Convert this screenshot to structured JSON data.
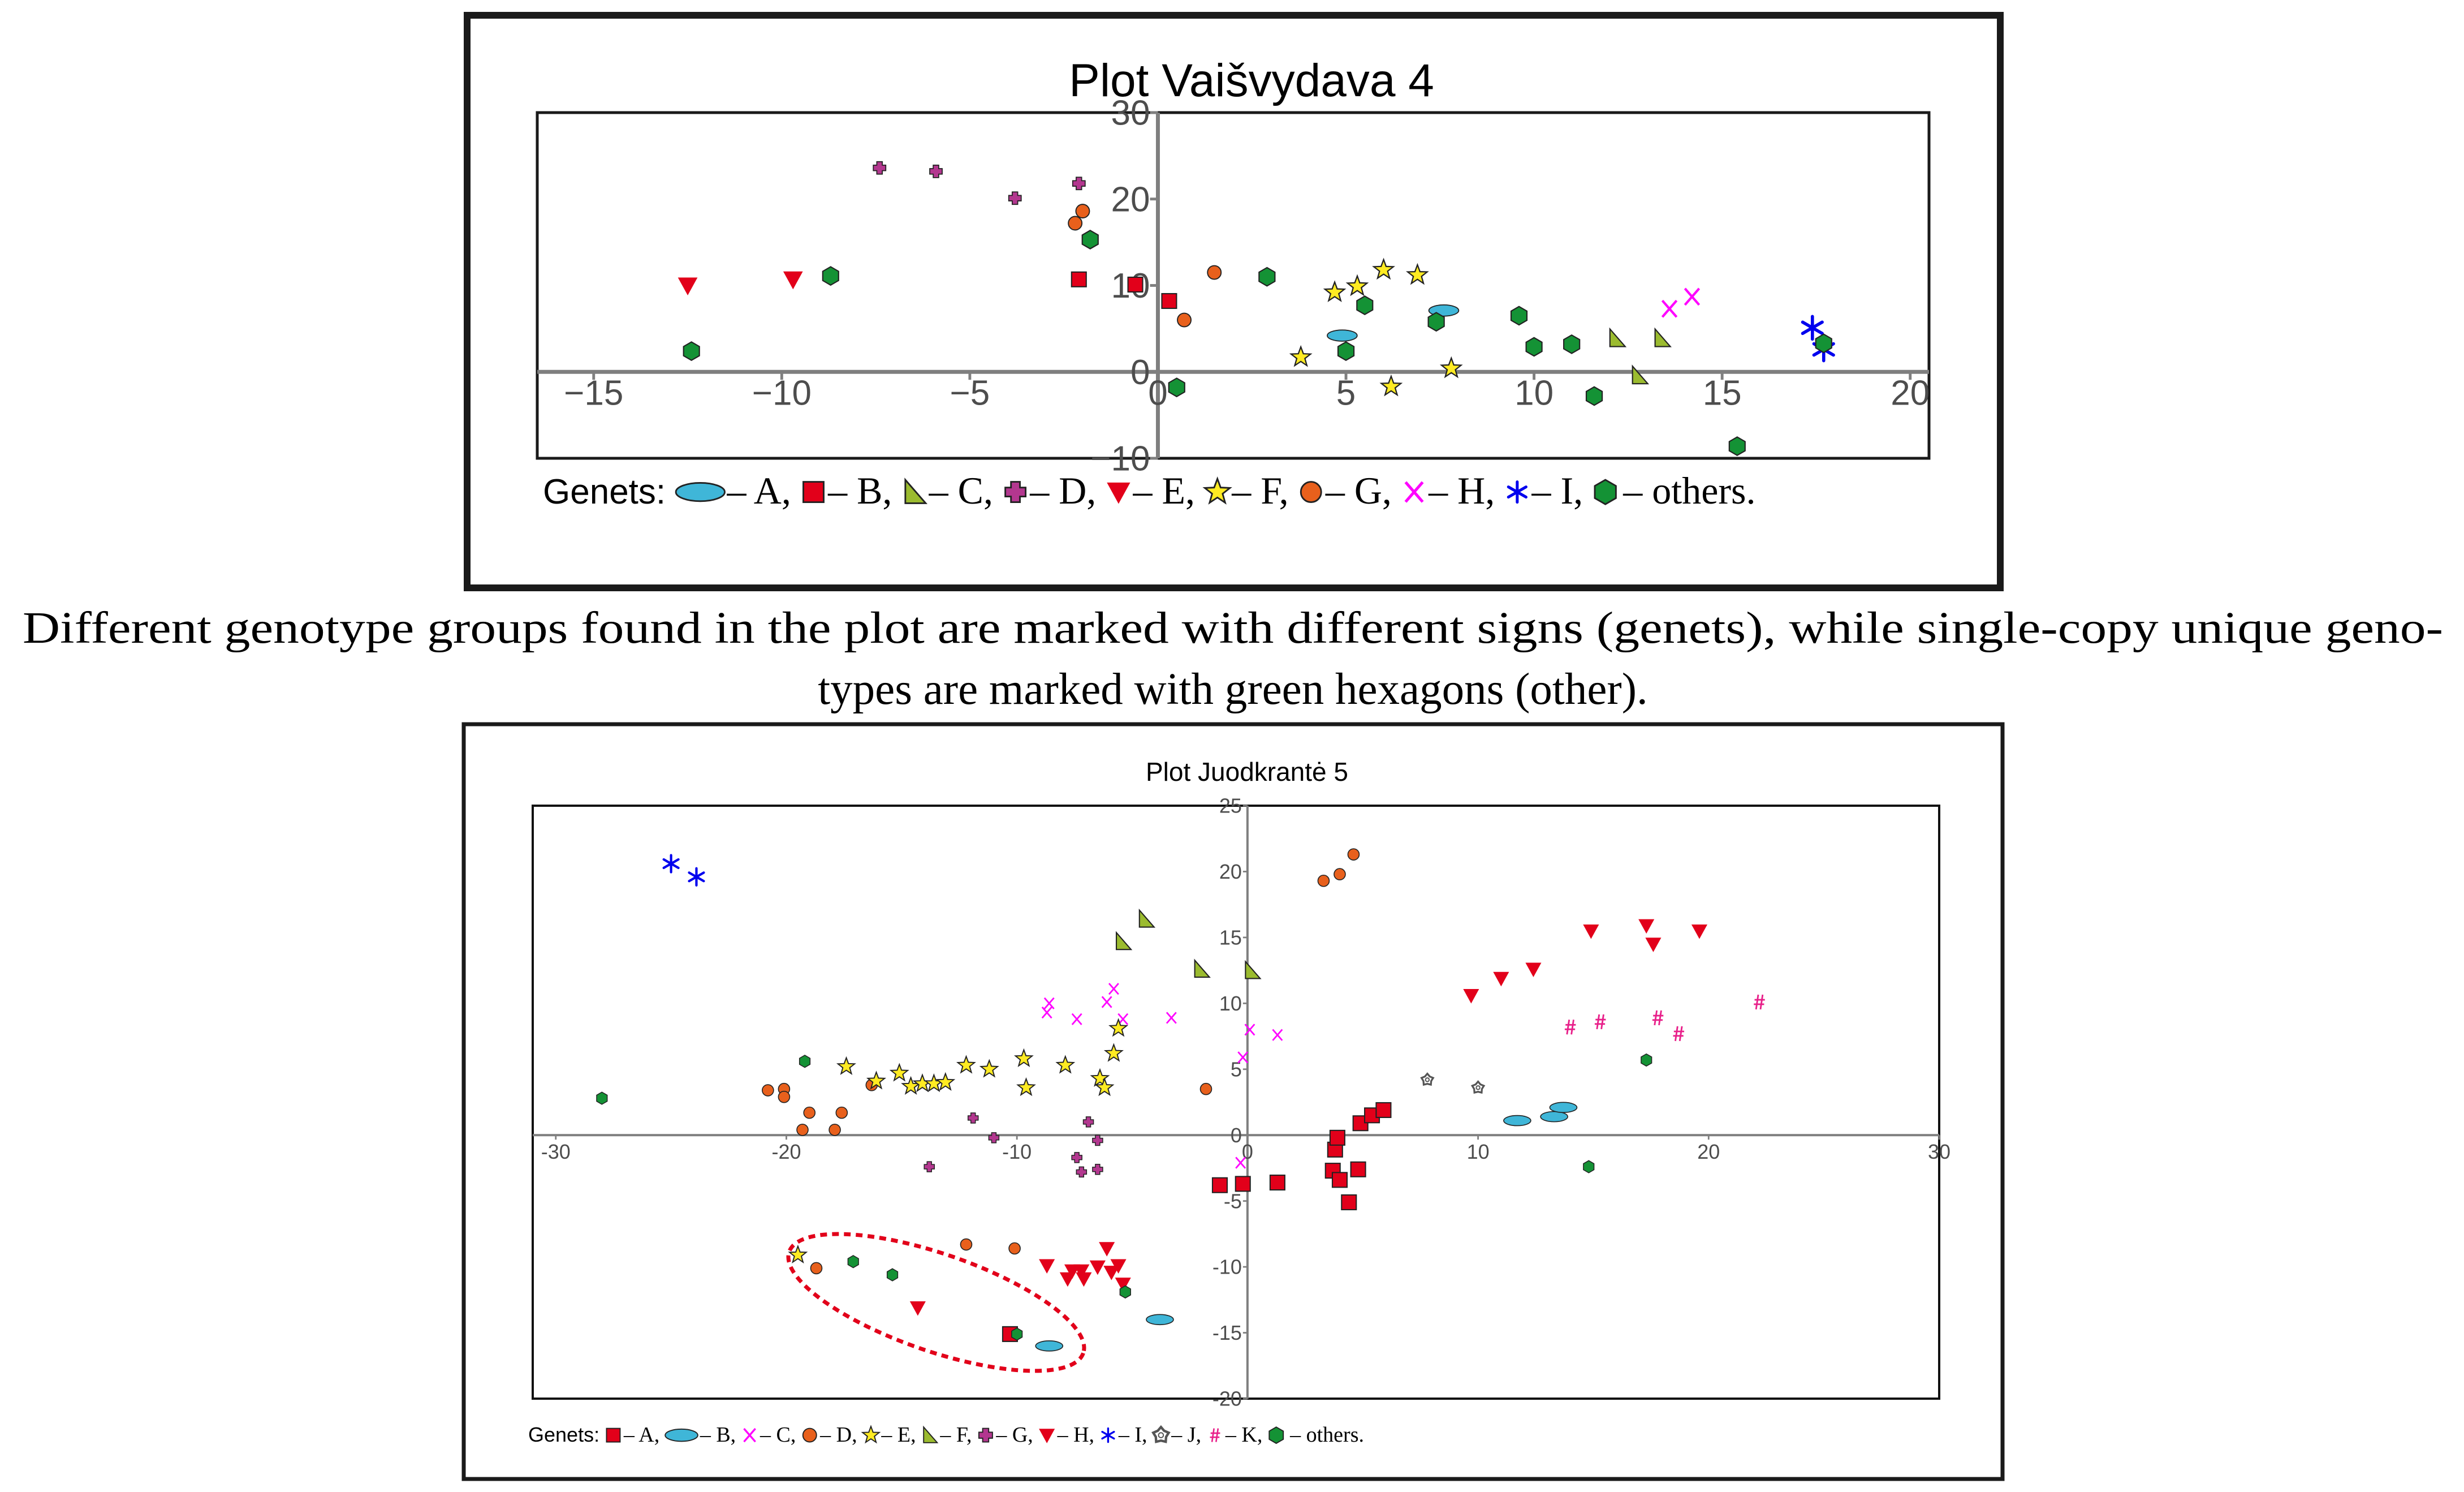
{
  "caption": {
    "line1": "Different genotype groups found in the plot are marked with different signs (genets), while single-copy unique geno-",
    "line2": "types are marked with green hexagons (other)."
  },
  "colors": {
    "red": "#e2001a",
    "green": "#149235",
    "orange": "#e8601c",
    "purple": "#b3378f",
    "yellow": "#ffeb22",
    "olive": "#9bbb2f",
    "magenta": "#ff00ff",
    "blue": "#0000ee",
    "cyan": "#3fb6d8",
    "pink": "#e8208a",
    "gray": "#555555",
    "axis": "#7f7f7f"
  },
  "chart_data": [
    {
      "type": "scatter",
      "title": "Plot Vaišvydava 4",
      "xlabel": "",
      "ylabel": "",
      "xlim": [
        -16.5,
        20.5
      ],
      "ylim": [
        -10,
        30
      ],
      "x_ticks": [
        -15,
        -10,
        -5,
        0,
        5,
        10,
        15,
        20
      ],
      "y_ticks": [
        30,
        20,
        10,
        0,
        -10
      ],
      "tick_labels_x": [
        "−15",
        "−10",
        "−5",
        "0",
        "5",
        "10",
        "15",
        "20"
      ],
      "tick_labels_y": [
        "30",
        "20",
        "10",
        "0",
        "−10"
      ],
      "grid": false,
      "legend_prefix": "Genets:",
      "legend_suffix": "– others.",
      "legend": [
        {
          "marker": "ellipse",
          "color": "cyan",
          "label": "– A,"
        },
        {
          "marker": "square",
          "color": "red",
          "label": "– B,"
        },
        {
          "marker": "triangle",
          "color": "olive",
          "label": "– C,"
        },
        {
          "marker": "cross",
          "color": "purple",
          "label": "– D,"
        },
        {
          "marker": "tridown",
          "color": "red",
          "label": "– E,"
        },
        {
          "marker": "star",
          "color": "yellow",
          "label": "– F,"
        },
        {
          "marker": "circle",
          "color": "orange",
          "label": "– G,"
        },
        {
          "marker": "x",
          "color": "magenta",
          "label": "– H,"
        },
        {
          "marker": "asterisk",
          "color": "blue",
          "label": "– I,"
        },
        {
          "marker": "hexagon",
          "color": "green",
          "label": ""
        }
      ],
      "series": [
        {
          "name": "A",
          "marker": "ellipse",
          "color": "cyan",
          "size": 22,
          "points": [
            [
              4.9,
              4.2
            ],
            [
              7.6,
              7.1
            ]
          ]
        },
        {
          "name": "B",
          "marker": "square",
          "color": "red",
          "size": 26,
          "points": [
            [
              -2.1,
              10.7
            ],
            [
              -0.6,
              10.1
            ],
            [
              0.3,
              8.2
            ]
          ]
        },
        {
          "name": "C",
          "marker": "triangle",
          "color": "olive",
          "size": 27,
          "points": [
            [
              12.2,
              3.9
            ],
            [
              13.4,
              3.9
            ],
            [
              12.8,
              -0.4
            ]
          ]
        },
        {
          "name": "D",
          "marker": "cross",
          "color": "purple",
          "size": 22,
          "points": [
            [
              -7.4,
              23.6
            ],
            [
              -5.9,
              23.2
            ],
            [
              -3.8,
              20.1
            ],
            [
              -2.1,
              21.8
            ]
          ]
        },
        {
          "name": "E",
          "marker": "tridown",
          "color": "red",
          "size": 30,
          "points": [
            [
              -12.5,
              10.0
            ],
            [
              -9.7,
              10.7
            ]
          ]
        },
        {
          "name": "F",
          "marker": "star",
          "color": "yellow",
          "size": 28,
          "points": [
            [
              4.7,
              9.2
            ],
            [
              5.3,
              9.9
            ],
            [
              6.0,
              11.8
            ],
            [
              6.9,
              11.2
            ],
            [
              3.8,
              1.7
            ],
            [
              6.2,
              -1.7
            ],
            [
              7.8,
              0.4
            ]
          ]
        },
        {
          "name": "G",
          "marker": "circle",
          "color": "orange",
          "size": 24,
          "points": [
            [
              -2.0,
              18.6
            ],
            [
              -2.2,
              17.2
            ],
            [
              0.7,
              6.0
            ],
            [
              1.5,
              11.5
            ]
          ]
        },
        {
          "name": "H",
          "marker": "x",
          "color": "magenta",
          "size": 30,
          "points": [
            [
              13.6,
              7.3
            ],
            [
              14.2,
              8.7
            ]
          ]
        },
        {
          "name": "I",
          "marker": "asterisk",
          "color": "blue",
          "size": 40,
          "points": [
            [
              17.4,
              5.1
            ],
            [
              17.7,
              2.6
            ]
          ]
        },
        {
          "name": "others",
          "marker": "hexagon",
          "color": "green",
          "size": 27,
          "points": [
            [
              -12.4,
              2.4
            ],
            [
              -8.7,
              11.1
            ],
            [
              -1.8,
              15.3
            ],
            [
              0.5,
              -1.8
            ],
            [
              2.9,
              11.0
            ],
            [
              5.0,
              2.4
            ],
            [
              5.5,
              7.7
            ],
            [
              7.4,
              5.8
            ],
            [
              9.6,
              6.5
            ],
            [
              10.0,
              2.9
            ],
            [
              11.0,
              3.2
            ],
            [
              11.6,
              -2.8
            ],
            [
              15.4,
              -8.6
            ],
            [
              17.7,
              3.3
            ]
          ]
        }
      ]
    },
    {
      "type": "scatter",
      "title": "Plot Juodkrantė 5",
      "xlabel": "",
      "ylabel": "",
      "xlim": [
        -31,
        30
      ],
      "ylim": [
        -20,
        25
      ],
      "x_ticks": [
        -30,
        -20,
        -10,
        0,
        10,
        20,
        30
      ],
      "y_ticks": [
        25,
        20,
        15,
        10,
        5,
        0,
        -5,
        -10,
        -15,
        -20
      ],
      "tick_labels_x": [
        "-30",
        "-20",
        "-10",
        "0",
        "10",
        "20",
        "30"
      ],
      "tick_labels_y": [
        "25",
        "20",
        "15",
        "10",
        "5",
        "0",
        "-5",
        "-10",
        "-15",
        "-20"
      ],
      "grid": false,
      "annotation": "red dashed ellipse around a cluster of points",
      "legend_prefix": "Genets:",
      "legend_suffix": "– others.",
      "legend": [
        {
          "marker": "square",
          "color": "red",
          "label": "– A,"
        },
        {
          "marker": "ellipse",
          "color": "cyan",
          "label": "– B,"
        },
        {
          "marker": "x",
          "color": "magenta",
          "label": "– C,"
        },
        {
          "marker": "circle",
          "color": "orange",
          "label": "– D,"
        },
        {
          "marker": "star",
          "color": "yellow",
          "label": "– E,"
        },
        {
          "marker": "triangle",
          "color": "olive",
          "label": "– F,"
        },
        {
          "marker": "cross",
          "color": "purple",
          "label": "– G,"
        },
        {
          "marker": "tridown",
          "color": "red",
          "label": "– H,"
        },
        {
          "marker": "asterisk",
          "color": "blue",
          "label": "– I,"
        },
        {
          "marker": "gear",
          "color": "gray",
          "label": "– J,"
        },
        {
          "marker": "hash",
          "color": "pink",
          "label": "– K,"
        },
        {
          "marker": "hexagon",
          "color": "green",
          "label": ""
        }
      ],
      "series": [
        {
          "name": "A",
          "marker": "square",
          "color": "red",
          "size": 26,
          "points": [
            [
              -10.3,
              -15.1
            ],
            [
              -1.2,
              -3.8
            ],
            [
              -0.2,
              -3.7
            ],
            [
              1.3,
              -3.6
            ],
            [
              3.7,
              -2.7
            ],
            [
              3.8,
              -1.1
            ],
            [
              3.9,
              -0.2
            ],
            [
              4.0,
              -3.4
            ],
            [
              4.4,
              -5.1
            ],
            [
              4.9,
              0.9
            ],
            [
              5.4,
              1.5
            ],
            [
              5.9,
              1.9
            ],
            [
              4.8,
              -2.6
            ]
          ]
        },
        {
          "name": "B",
          "marker": "ellipse",
          "color": "cyan",
          "size": 20,
          "points": [
            [
              -8.6,
              -16.0
            ],
            [
              -3.8,
              -14.0
            ],
            [
              11.7,
              1.1
            ],
            [
              13.3,
              1.4
            ],
            [
              13.7,
              2.1
            ]
          ]
        },
        {
          "name": "C",
          "marker": "x",
          "color": "magenta",
          "size": 20,
          "points": [
            [
              -8.7,
              9.3
            ],
            [
              -8.6,
              10.0
            ],
            [
              -7.4,
              8.8
            ],
            [
              -6.1,
              10.1
            ],
            [
              -5.8,
              11.1
            ],
            [
              -5.4,
              8.8
            ],
            [
              -3.3,
              8.9
            ],
            [
              -0.2,
              5.9
            ],
            [
              0.1,
              8.0
            ],
            [
              1.3,
              7.6
            ],
            [
              -0.3,
              -2.1
            ]
          ]
        },
        {
          "name": "D",
          "marker": "circle",
          "color": "orange",
          "size": 20,
          "points": [
            [
              -20.8,
              3.4
            ],
            [
              -20.1,
              3.5
            ],
            [
              -20.1,
              2.9
            ],
            [
              -19.0,
              1.7
            ],
            [
              -17.6,
              1.7
            ],
            [
              -16.3,
              3.8
            ],
            [
              -19.3,
              0.4
            ],
            [
              -17.9,
              0.4
            ],
            [
              -18.7,
              -10.1
            ],
            [
              -12.2,
              -8.3
            ],
            [
              -10.1,
              -8.6
            ],
            [
              -1.8,
              3.5
            ],
            [
              3.3,
              19.3
            ],
            [
              4.0,
              19.8
            ],
            [
              4.6,
              21.3
            ]
          ]
        },
        {
          "name": "E",
          "marker": "star",
          "color": "yellow",
          "size": 24,
          "points": [
            [
              -17.4,
              5.2
            ],
            [
              -16.1,
              4.1
            ],
            [
              -15.1,
              4.7
            ],
            [
              -14.6,
              3.7
            ],
            [
              -14.1,
              3.9
            ],
            [
              -13.6,
              3.9
            ],
            [
              -13.1,
              4.0
            ],
            [
              -12.2,
              5.3
            ],
            [
              -11.2,
              5.0
            ],
            [
              -9.7,
              5.8
            ],
            [
              -9.6,
              3.6
            ],
            [
              -7.9,
              5.3
            ],
            [
              -6.4,
              4.3
            ],
            [
              -6.2,
              3.6
            ],
            [
              -5.8,
              6.2
            ],
            [
              -5.6,
              8.1
            ],
            [
              -19.5,
              -9.1
            ]
          ]
        },
        {
          "name": "F",
          "marker": "triangle",
          "color": "olive",
          "size": 26,
          "points": [
            [
              -5.4,
              14.7
            ],
            [
              -4.4,
              16.4
            ],
            [
              -2.0,
              12.6
            ],
            [
              0.2,
              12.5
            ]
          ]
        },
        {
          "name": "G",
          "marker": "cross",
          "color": "purple",
          "size": 18,
          "points": [
            [
              -13.8,
              -2.4
            ],
            [
              -11.9,
              1.3
            ],
            [
              -11.0,
              -0.2
            ],
            [
              -7.4,
              -1.7
            ],
            [
              -7.2,
              -2.8
            ],
            [
              -6.9,
              1.0
            ],
            [
              -6.5,
              -0.4
            ],
            [
              -6.5,
              -2.6
            ]
          ]
        },
        {
          "name": "H",
          "marker": "tridown",
          "color": "red",
          "size": 24,
          "points": [
            [
              -14.3,
              -13.1
            ],
            [
              -8.7,
              -9.9
            ],
            [
              -7.8,
              -10.9
            ],
            [
              -7.6,
              -10.3
            ],
            [
              -7.2,
              -10.3
            ],
            [
              -7.1,
              -10.9
            ],
            [
              -6.5,
              -10.0
            ],
            [
              -6.1,
              -8.6
            ],
            [
              -5.9,
              -10.4
            ],
            [
              -5.6,
              -9.9
            ],
            [
              -5.4,
              -11.3
            ],
            [
              9.7,
              10.6
            ],
            [
              11.0,
              11.9
            ],
            [
              12.4,
              12.6
            ],
            [
              14.9,
              15.5
            ],
            [
              17.3,
              15.9
            ],
            [
              17.6,
              14.5
            ],
            [
              19.6,
              15.5
            ]
          ]
        },
        {
          "name": "I",
          "marker": "asterisk",
          "color": "blue",
          "size": 30,
          "points": [
            [
              -25.0,
              20.6
            ],
            [
              -23.9,
              19.6
            ]
          ]
        },
        {
          "name": "J",
          "marker": "gear",
          "color": "gray",
          "size": 18,
          "points": [
            [
              7.8,
              4.2
            ],
            [
              10.0,
              3.6
            ]
          ]
        },
        {
          "name": "K",
          "marker": "hash",
          "color": "pink",
          "size": 26,
          "points": [
            [
              14.0,
              8.2
            ],
            [
              15.3,
              8.6
            ],
            [
              17.8,
              8.9
            ],
            [
              18.7,
              7.7
            ],
            [
              22.2,
              10.1
            ]
          ]
        },
        {
          "name": "others",
          "marker": "hexagon",
          "color": "green",
          "size": 18,
          "points": [
            [
              -28.0,
              2.8
            ],
            [
              -19.2,
              5.6
            ],
            [
              -17.1,
              -9.6
            ],
            [
              -15.4,
              -10.6
            ],
            [
              -10.0,
              -15.1
            ],
            [
              -5.3,
              -11.9
            ],
            [
              14.8,
              -2.4
            ],
            [
              17.3,
              5.7
            ]
          ]
        }
      ]
    }
  ]
}
